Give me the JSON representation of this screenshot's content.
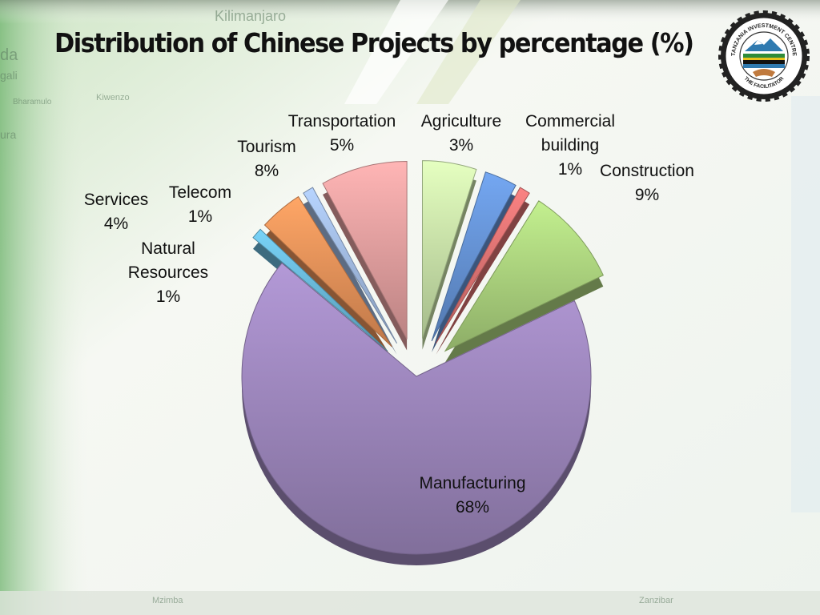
{
  "slide": {
    "title": "Distribution of Chinese Projects by  percentage (%)",
    "background_words": [
      "Kilimanjaro",
      "Mzimba",
      "Zanzibar",
      "Bharamulo",
      "Kiwenzo",
      "gali",
      "ura",
      "da"
    ],
    "logo": {
      "top_text": "TANZANIA INVESTMENT CENTRE",
      "bottom_text": "THE FACILITATOR"
    }
  },
  "chart_data": {
    "type": "pie",
    "title": "Distribution of Chinese Projects by  percentage (%)",
    "unit": "%",
    "slices": [
      {
        "label": "Transportation",
        "value": 5,
        "label_display": "5%",
        "color": "#d4f0b2"
      },
      {
        "label": "Agriculture",
        "value": 3,
        "label_display": "3%",
        "color": "#6b9be0"
      },
      {
        "label": "Commercial building",
        "value": 1,
        "label_display": "1%",
        "color": "#e87878"
      },
      {
        "label": "Construction",
        "value": 9,
        "label_display": "9%",
        "color": "#b5de84"
      },
      {
        "label": "Manufacturing",
        "value": 68,
        "label_display": "68%",
        "color": "#a68ec7"
      },
      {
        "label": "Natural Resources",
        "value": 1,
        "label_display": "1%",
        "color": "#6fc3e6"
      },
      {
        "label": "Services",
        "value": 4,
        "label_display": "4%",
        "color": "#f59a5e"
      },
      {
        "label": "Telecom",
        "value": 1,
        "label_display": "1%",
        "color": "#a9c4ec"
      },
      {
        "label": "Tourism",
        "value": 8,
        "label_display": "8%",
        "color": "#f0a8a8"
      }
    ],
    "exploded": true,
    "legend": "none",
    "data_labels": "outside"
  }
}
